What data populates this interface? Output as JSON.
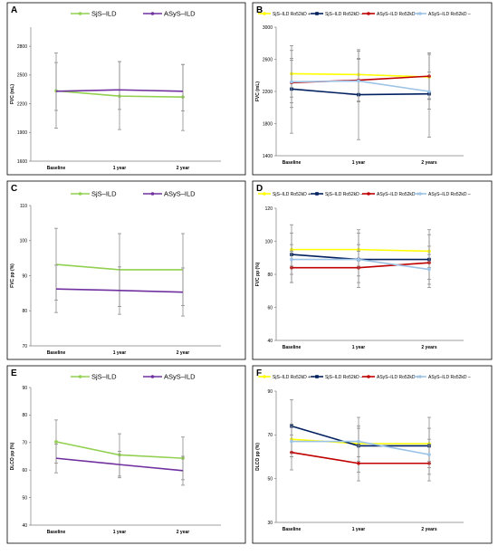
{
  "colors": {
    "sjs": "#92d050",
    "asys": "#7030a0",
    "sjs_pos": "#ffff00",
    "sjs_neg": "#002060",
    "asys_pos": "#c00000",
    "asys_neg": "#9dc3e6",
    "error_bar": "#8c8c8c"
  },
  "chart_data": [
    {
      "panel": "A",
      "type": "line",
      "categories": [
        "Baseline",
        "1 year",
        "2 year"
      ],
      "ylabel": "FVC (mL)",
      "ylim": [
        1600,
        3000
      ],
      "yticks": [
        1600,
        1900,
        2200,
        2500,
        2800
      ],
      "legend_position": "top",
      "series": [
        {
          "name": "SjS–ILD",
          "color_key": "sjs",
          "marker": "circle",
          "values": [
            2335,
            2280,
            2270
          ],
          "lower": [
            1945,
            1930,
            1920
          ],
          "upper": [
            2730,
            2640,
            2610
          ]
        },
        {
          "name": "ASyS–ILD",
          "color_key": "asys",
          "marker": "none",
          "values": [
            2330,
            2345,
            2330
          ],
          "lower": [
            2130,
            2140,
            2125
          ],
          "upper": [
            2630,
            2640,
            2610
          ]
        }
      ]
    },
    {
      "panel": "B",
      "type": "line",
      "categories": [
        "Baseline",
        "1 year",
        "2 years"
      ],
      "ylabel": "FVC (mL)",
      "ylim": [
        1400,
        3000
      ],
      "yticks": [
        1400,
        1800,
        2200,
        2600,
        3000
      ],
      "legend_position": "top",
      "series": [
        {
          "name": "SjS–ILD Ro52kD +",
          "color_key": "sjs_pos",
          "marker": "circle",
          "values": [
            2420,
            2410,
            2380
          ],
          "lower": [
            2130,
            2150,
            2100
          ],
          "upper": [
            2710,
            2700,
            2660
          ]
        },
        {
          "name": "SjS–ILD Ro52kD –",
          "color_key": "sjs_neg",
          "marker": "square",
          "values": [
            2230,
            2160,
            2170
          ],
          "lower": [
            1680,
            1600,
            1630
          ],
          "upper": [
            2770,
            2720,
            2680
          ]
        },
        {
          "name": "ASyS–ILD Ro52kD +",
          "color_key": "asys_pos",
          "marker": "circle",
          "values": [
            2310,
            2340,
            2390
          ],
          "lower": [
            2000,
            2080,
            2110
          ],
          "upper": [
            2590,
            2610,
            2680
          ]
        },
        {
          "name": "ASyS–ILD Ro52kD –",
          "color_key": "asys_neg",
          "marker": "circle",
          "values": [
            2320,
            2330,
            2200
          ],
          "lower": [
            2060,
            2070,
            1980
          ],
          "upper": [
            2610,
            2600,
            2440
          ]
        }
      ]
    },
    {
      "panel": "C",
      "type": "line",
      "categories": [
        "Baseline",
        "1 year",
        "2 year"
      ],
      "ylabel": "FVC pp (%)",
      "ylim": [
        70,
        110
      ],
      "yticks": [
        70,
        80,
        90,
        100,
        110
      ],
      "legend_position": "top",
      "series": [
        {
          "name": "SjS–ILD",
          "color_key": "sjs",
          "marker": "none",
          "values": [
            93.2,
            91.7,
            91.7
          ],
          "lower": [
            83.0,
            81.2,
            81.5
          ],
          "upper": [
            103.5,
            102.0,
            102.0
          ]
        },
        {
          "name": "ASyS–ILD",
          "color_key": "asys",
          "marker": "none",
          "values": [
            86.2,
            85.8,
            85.3
          ],
          "lower": [
            79.5,
            79.0,
            78.5
          ],
          "upper": [
            93.0,
            92.5,
            92.2
          ]
        }
      ]
    },
    {
      "panel": "D",
      "type": "line",
      "categories": [
        "Baseline",
        "1 year",
        "2 years"
      ],
      "ylabel": "FVC pp (%)",
      "ylim": [
        40,
        120
      ],
      "yticks": [
        40,
        60,
        80,
        100,
        120
      ],
      "legend_position": "top",
      "series": [
        {
          "name": "SjS–ILD Ro52kD +",
          "color_key": "sjs_pos",
          "marker": "circle",
          "values": [
            95,
            95,
            94
          ],
          "lower": [
            85,
            85,
            84
          ],
          "upper": [
            105,
            105,
            104
          ]
        },
        {
          "name": "SjS–ILD Ro52kD –",
          "color_key": "sjs_neg",
          "marker": "square",
          "values": [
            92,
            89,
            89
          ],
          "lower": [
            75,
            72,
            72
          ],
          "upper": [
            110,
            107,
            107
          ]
        },
        {
          "name": "ASyS–ILD Ro52kD +",
          "color_key": "asys_pos",
          "marker": "circle",
          "values": [
            84,
            84,
            87
          ],
          "lower": [
            75,
            75,
            77
          ],
          "upper": [
            94,
            94,
            97
          ]
        },
        {
          "name": "ASyS–ILD Ro52kD –",
          "color_key": "asys_neg",
          "marker": "circle",
          "values": [
            89,
            89,
            83
          ],
          "lower": [
            80,
            79,
            74
          ],
          "upper": [
            98,
            98,
            92
          ]
        }
      ]
    },
    {
      "panel": "E",
      "type": "line",
      "categories": [
        "Baseline",
        "1 year",
        "2 year"
      ],
      "ylabel": "DLCO pp (%)",
      "ylim": [
        40,
        90
      ],
      "yticks": [
        40,
        50,
        60,
        70,
        80,
        90
      ],
      "legend_position": "top",
      "series": [
        {
          "name": "SjS–ILD",
          "color_key": "sjs",
          "marker": "circle",
          "values": [
            70.3,
            65.5,
            64.3
          ],
          "lower": [
            62.5,
            57.8,
            56.5
          ],
          "upper": [
            78.2,
            73.2,
            72.0
          ]
        },
        {
          "name": "ASyS–ILD",
          "color_key": "asys",
          "marker": "none",
          "values": [
            64.3,
            62.0,
            59.8
          ],
          "lower": [
            59.0,
            57.2,
            54.5
          ],
          "upper": [
            69.5,
            66.8,
            65.0
          ]
        }
      ]
    },
    {
      "panel": "F",
      "type": "line",
      "categories": [
        "Baseline",
        "1 year",
        "2 years"
      ],
      "ylabel": "DLCO pp (%)",
      "ylim": [
        30,
        90
      ],
      "yticks": [
        30,
        50,
        70,
        90
      ],
      "legend_position": "top",
      "series": [
        {
          "name": "SjS–ILD Ro52kD +",
          "color_key": "sjs_pos",
          "marker": "circle",
          "values": [
            68,
            66,
            66
          ],
          "lower": [
            60,
            58,
            58
          ],
          "upper": [
            75,
            74,
            73
          ]
        },
        {
          "name": "SjS–ILD Ro52kD –",
          "color_key": "sjs_neg",
          "marker": "square",
          "values": [
            74,
            65,
            65
          ],
          "lower": [
            62,
            53,
            52
          ],
          "upper": [
            86,
            78,
            78
          ]
        },
        {
          "name": "ASyS–ILD Ro52kD +",
          "color_key": "asys_pos",
          "marker": "circle",
          "values": [
            62,
            57,
            57
          ],
          "lower": [
            54,
            49,
            49
          ],
          "upper": [
            70,
            65,
            65
          ]
        },
        {
          "name": "ASyS–ILD Ro52kD –",
          "color_key": "asys_neg",
          "marker": "circle",
          "values": [
            67,
            67,
            61
          ],
          "lower": [
            60,
            60,
            55
          ],
          "upper": [
            74,
            73,
            68
          ]
        }
      ]
    }
  ]
}
